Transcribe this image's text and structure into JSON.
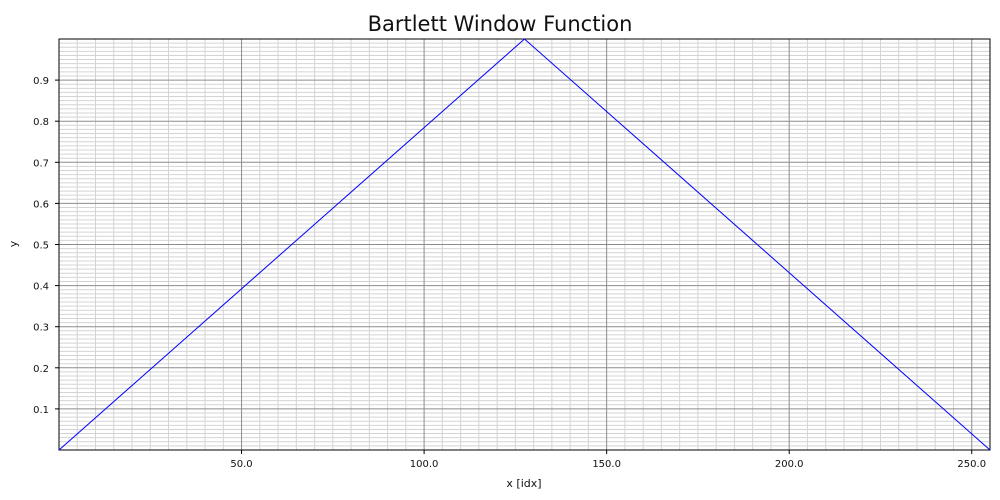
{
  "chart_data": {
    "type": "line",
    "title": "Bartlett Window Function",
    "xlabel": "x [idx]",
    "ylabel": "y",
    "xlim": [
      0,
      255
    ],
    "ylim": [
      0,
      1
    ],
    "x_ticks": [
      {
        "value": 50,
        "label": "50.0"
      },
      {
        "value": 100,
        "label": "100.0"
      },
      {
        "value": 150,
        "label": "150.0"
      },
      {
        "value": 200,
        "label": "200.0"
      },
      {
        "value": 250,
        "label": "250.0"
      }
    ],
    "y_ticks": [
      {
        "value": 0.1,
        "label": "0.1"
      },
      {
        "value": 0.2,
        "label": "0.2"
      },
      {
        "value": 0.3,
        "label": "0.3"
      },
      {
        "value": 0.4,
        "label": "0.4"
      },
      {
        "value": 0.5,
        "label": "0.5"
      },
      {
        "value": 0.6,
        "label": "0.6"
      },
      {
        "value": 0.7,
        "label": "0.7"
      },
      {
        "value": 0.8,
        "label": "0.8"
      },
      {
        "value": 0.9,
        "label": "0.9"
      }
    ],
    "grid": true,
    "minor_grid": true,
    "series": [
      {
        "color": "#0000ff",
        "x": [
          0,
          127.5,
          255
        ],
        "y": [
          0,
          1,
          0
        ]
      }
    ]
  }
}
